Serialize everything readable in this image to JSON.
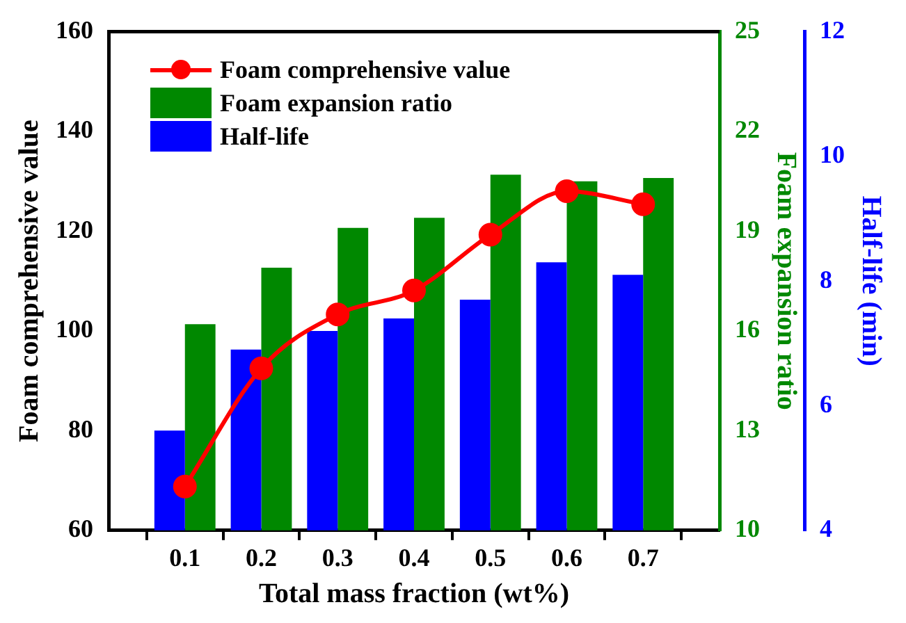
{
  "chart_data": {
    "type": "bar",
    "xlabel": "Total mass fraction (wt%)",
    "ylabel": "Foam comprehensive value",
    "y2label": "Foam expansion ratio",
    "y3label": "Half-life (min)",
    "x": [
      0.1,
      0.2,
      0.3,
      0.4,
      0.5,
      0.6,
      0.7
    ],
    "xlim": [
      0,
      0.8
    ],
    "xticks": [
      0.1,
      0.2,
      0.3,
      0.4,
      0.5,
      0.6,
      0.7
    ],
    "ylim": [
      60,
      160
    ],
    "yticks": [
      60,
      80,
      100,
      120,
      140,
      160
    ],
    "y2lim": [
      10,
      25
    ],
    "y2ticks": [
      10,
      13,
      16,
      19,
      22,
      25
    ],
    "y3lim": [
      4,
      12
    ],
    "y3ticks": [
      4,
      6,
      8,
      10,
      12
    ],
    "grid": false,
    "legend": "top left",
    "series": [
      {
        "name": "Foam comprehensive value",
        "type": "line",
        "marker": "circle",
        "line_style": "solid",
        "color": "#ff0000",
        "values": [
          68.8,
          92.5,
          103.3,
          108.1,
          119.3,
          128.0,
          125.4
        ]
      },
      {
        "name": "Foam expansion ratio",
        "axis": "y2",
        "color": "#008800",
        "values": [
          16.2,
          17.9,
          19.1,
          19.4,
          20.7,
          20.5,
          20.6
        ]
      },
      {
        "name": "Half-life",
        "axis": "y3",
        "color": "#0000ff",
        "values": [
          5.6,
          6.9,
          7.2,
          7.4,
          7.7,
          8.3,
          8.1
        ]
      }
    ]
  }
}
